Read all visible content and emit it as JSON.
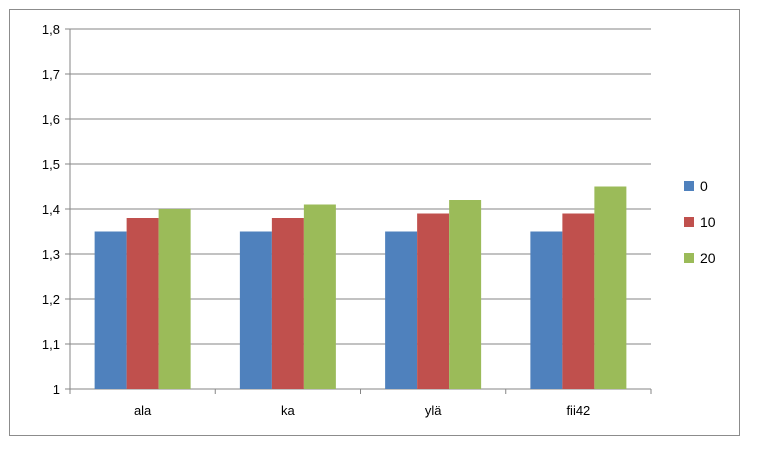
{
  "chart_data": {
    "type": "bar",
    "title": "",
    "xlabel": "",
    "ylabel": "",
    "categories": [
      "ala",
      "ka",
      "ylä",
      "fii42"
    ],
    "series": [
      {
        "name": "0",
        "values": [
          1.35,
          1.35,
          1.35,
          1.35
        ],
        "color": "#4f81bd"
      },
      {
        "name": "10",
        "values": [
          1.38,
          1.38,
          1.39,
          1.39
        ],
        "color": "#c0504d"
      },
      {
        "name": "20",
        "values": [
          1.4,
          1.41,
          1.42,
          1.45
        ],
        "color": "#9bbb59"
      }
    ],
    "ylim": [
      1,
      1.8
    ],
    "yticks": [
      "1",
      "1,1",
      "1,2",
      "1,3",
      "1,4",
      "1,5",
      "1,6",
      "1,7",
      "1,8"
    ],
    "grid": true,
    "legend_position": "right"
  }
}
